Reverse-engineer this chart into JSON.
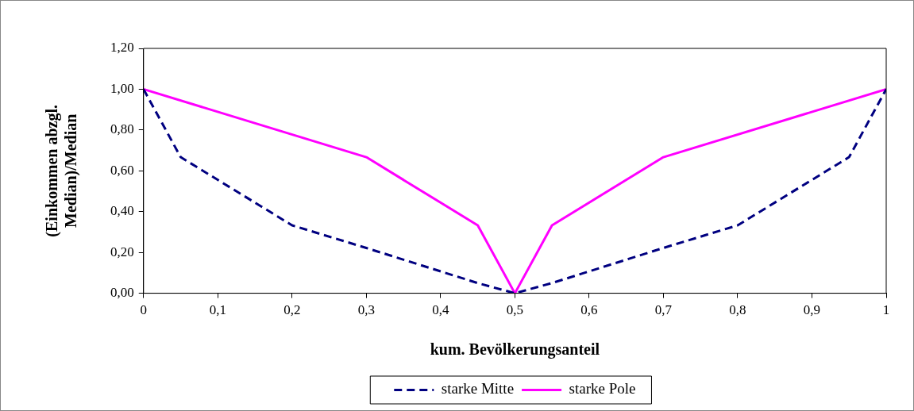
{
  "chart_data": {
    "type": "line",
    "xlabel": "kum. Bevölkerungsanteil",
    "ylabel": "(Einkommen abzgl. Median)/Median",
    "xlim": [
      0,
      1
    ],
    "xticks": [
      {
        "value": 0,
        "label": "0"
      },
      {
        "value": 0.1,
        "label": "0,1"
      },
      {
        "value": 0.2,
        "label": "0,2"
      },
      {
        "value": 0.3,
        "label": "0,3"
      },
      {
        "value": 0.4,
        "label": "0,4"
      },
      {
        "value": 0.5,
        "label": "0,5"
      },
      {
        "value": 0.6,
        "label": "0,6"
      },
      {
        "value": 0.7,
        "label": "0,7"
      },
      {
        "value": 0.8,
        "label": "0,8"
      },
      {
        "value": 0.9,
        "label": "0,9"
      },
      {
        "value": 1,
        "label": "1"
      }
    ],
    "ylim": [
      0,
      1.2
    ],
    "yticks": [
      {
        "value": 0,
        "label": "0,00"
      },
      {
        "value": 0.2,
        "label": "0,20"
      },
      {
        "value": 0.4,
        "label": "0,40"
      },
      {
        "value": 0.6,
        "label": "0,60"
      },
      {
        "value": 0.8,
        "label": "0,80"
      },
      {
        "value": 1,
        "label": "1,00"
      },
      {
        "value": 1.2,
        "label": "1,20"
      }
    ],
    "grid": false,
    "legend": "bottom",
    "marker": "none",
    "series": [
      {
        "name": "starke Mitte",
        "color": "#000080",
        "line_style": "dashed",
        "x": [
          0,
          0.05,
          0.2,
          0.3,
          0.45,
          0.5,
          0.55,
          0.7,
          0.8,
          0.95,
          1
        ],
        "values": [
          1,
          0.667,
          0.333,
          0.222,
          0.05,
          0,
          0.05,
          0.222,
          0.333,
          0.667,
          1
        ]
      },
      {
        "name": "starke Pole",
        "color": "#ff00ff",
        "line_style": "solid",
        "x": [
          0,
          0.3,
          0.45,
          0.5,
          0.55,
          0.7,
          1
        ],
        "values": [
          1,
          0.667,
          0.333,
          0,
          0.333,
          0.667,
          1
        ]
      }
    ]
  }
}
